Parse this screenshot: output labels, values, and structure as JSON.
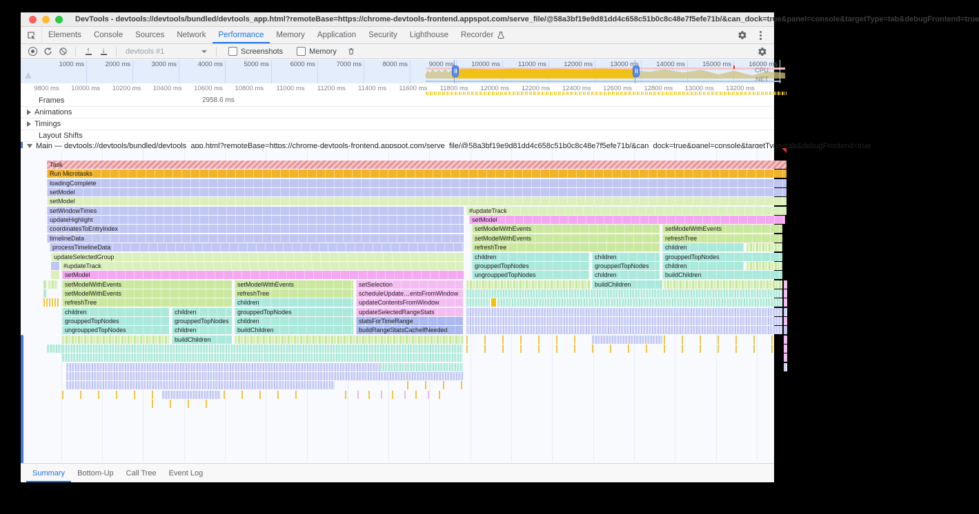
{
  "window": {
    "title": "DevTools - devtools://devtools/bundled/devtools_app.html?remoteBase=https://chrome-devtools-frontend.appspot.com/serve_file/@58a3bf19e9d81dd4c658c51b0c8c48e7f5efe71b/&can_dock=true&panel=console&targetType=tab&debugFrontend=true"
  },
  "tab_bar": {
    "tabs": [
      {
        "label": "Elements",
        "active": false
      },
      {
        "label": "Console",
        "active": false
      },
      {
        "label": "Sources",
        "active": false
      },
      {
        "label": "Network",
        "active": false
      },
      {
        "label": "Performance",
        "active": true
      },
      {
        "label": "Memory",
        "active": false
      },
      {
        "label": "Application",
        "active": false
      },
      {
        "label": "Security",
        "active": false
      },
      {
        "label": "Lighthouse",
        "active": false
      },
      {
        "label": "Recorder",
        "active": false,
        "icon": "flask-icon"
      }
    ]
  },
  "toolbar": {
    "history_label": "devtools #1",
    "screenshots_label": "Screenshots",
    "memory_label": "Memory",
    "screenshots_checked": false,
    "memory_checked": false
  },
  "overview": {
    "tick_labels": [
      "1000 ms",
      "2000 ms",
      "3000 ms",
      "4000 ms",
      "5000 ms",
      "6000 ms",
      "7000 ms",
      "8000 ms",
      "9000 ms",
      "10000 ms",
      "11000 ms",
      "12000 ms",
      "13000 ms",
      "14000 ms",
      "15000 ms",
      "16000 ms"
    ],
    "cpu_label": "CPU",
    "net_label": "NET"
  },
  "ruler": {
    "tick_labels": [
      "9800 ms",
      "10000 ms",
      "10200 ms",
      "10400 ms",
      "10600 ms",
      "10800 ms",
      "11000 ms",
      "11200 ms",
      "11400 ms",
      "11600 ms",
      "11800 ms",
      "12000 ms",
      "12200 ms",
      "12400 ms",
      "12600 ms",
      "12800 ms",
      "13000 ms",
      "13200 ms"
    ]
  },
  "tracks": {
    "frames": {
      "label": "Frames",
      "frame_duration": "2958.6 ms"
    },
    "animations": {
      "label": "Animations"
    },
    "timings": {
      "label": "Timings"
    },
    "layout_shifts": {
      "label": "Layout Shifts"
    },
    "main": {
      "label": "Main — devtools://devtools/bundled/devtools_app.html?remoteBase=https://chrome-devtools-frontend.appspot.com/serve_file/@58a3bf19e9d81dd4c658c51b0c8c48e7f5efe71b/&can_dock=true&panel=console&targetType=tab&debugFrontend=true"
    }
  },
  "flame": {
    "rows": [
      {
        "bars": [
          [
            38,
            1072,
            "task",
            "Task"
          ]
        ]
      },
      {
        "bars": [
          [
            38,
            1072,
            "script",
            "Run Microtasks"
          ]
        ]
      },
      {
        "bars": [
          [
            38,
            1072,
            "lav",
            "loadingComplete"
          ]
        ]
      },
      {
        "bars": [
          [
            38,
            1072,
            "lav",
            "setModel"
          ]
        ]
      },
      {
        "bars": [
          [
            38,
            1072,
            "grn1",
            "setModel"
          ]
        ]
      },
      {
        "bars": [
          [
            38,
            604,
            "lav",
            "setWindowTimes"
          ],
          [
            646,
            464,
            "grn1",
            "#updateTrack"
          ]
        ]
      },
      {
        "bars": [
          [
            38,
            604,
            "lav",
            "updateHighlight"
          ],
          [
            650,
            458,
            "pink",
            "setModel"
          ]
        ]
      },
      {
        "bars": [
          [
            38,
            604,
            "lav",
            "coordinatesToEntryIndex"
          ],
          [
            654,
            272,
            "grn2",
            "setModelWithEvents"
          ],
          [
            930,
            174,
            "grn2",
            "setModelWithEvents"
          ]
        ]
      },
      {
        "bars": [
          [
            38,
            604,
            "lav",
            "timelineData"
          ],
          [
            654,
            272,
            "grn2",
            "setModelWithEvents"
          ],
          [
            930,
            174,
            "grn2",
            "refreshTree"
          ]
        ]
      },
      {
        "bars": [
          [
            42,
            600,
            "lav",
            "processTimelineData"
          ],
          [
            654,
            272,
            "grn2",
            "refreshTree"
          ],
          [
            930,
            118,
            "teal",
            "children"
          ],
          [
            1052,
            52,
            "cgrn",
            ""
          ]
        ]
      },
      {
        "bars": [
          [
            44,
            598,
            "grn1",
            "updateSelectedGroup"
          ],
          [
            654,
            170,
            "teal",
            "children"
          ],
          [
            828,
            98,
            "teal",
            "children"
          ],
          [
            930,
            174,
            "teal",
            "grouppedTopNodes"
          ]
        ]
      },
      {
        "bars": [
          [
            44,
            12,
            "lav",
            ""
          ],
          [
            58,
            584,
            "grn1",
            "#updateTrack"
          ],
          [
            654,
            170,
            "teal",
            "grouppedTopNodes"
          ],
          [
            828,
            98,
            "teal",
            "grouppedTopNodes"
          ],
          [
            930,
            118,
            "teal",
            "children"
          ],
          [
            1052,
            52,
            "cgrn",
            ""
          ]
        ]
      },
      {
        "bars": [
          [
            44,
            12,
            "grn1",
            ""
          ],
          [
            60,
            582,
            "pink",
            "setModel"
          ],
          [
            654,
            170,
            "teal",
            "ungrouppedTopNodes"
          ],
          [
            828,
            98,
            "teal",
            "children"
          ],
          [
            930,
            174,
            "teal",
            "buildChildren"
          ]
        ]
      },
      {
        "bars": [
          [
            33,
            4,
            "grn2",
            ""
          ],
          [
            40,
            14,
            "cgrn",
            ""
          ],
          [
            60,
            246,
            "grn2",
            "setModelWithEvents"
          ],
          [
            310,
            172,
            "grn2",
            "setModelWithEvents"
          ],
          [
            486,
            155,
            "pinkL",
            "setSelection"
          ],
          [
            646,
            180,
            "cgrn",
            ""
          ],
          [
            828,
            102,
            "teal",
            "buildChildren"
          ],
          [
            932,
            172,
            "cgrn",
            ""
          ],
          [
            1106,
            5,
            "pinkL",
            ""
          ]
        ]
      },
      {
        "bars": [
          [
            33,
            4,
            "teal",
            ""
          ],
          [
            60,
            246,
            "grn2",
            "setModelWithEvents"
          ],
          [
            310,
            172,
            "grn2",
            "refreshTree"
          ],
          [
            486,
            155,
            "pinkL",
            "scheduleUpdate…entsFromWindow"
          ],
          [
            646,
            458,
            "cteal",
            ""
          ],
          [
            1106,
            5,
            "pinkL",
            ""
          ]
        ]
      },
      {
        "bars": [
          [
            33,
            24,
            "ty",
            ""
          ],
          [
            60,
            246,
            "grn2",
            "refreshTree"
          ],
          [
            310,
            172,
            "teal",
            "children"
          ],
          [
            486,
            155,
            "pinkL",
            "updateContentsFromWindow"
          ],
          [
            646,
            34,
            "cteal",
            ""
          ],
          [
            682,
            7,
            "yblk",
            ""
          ],
          [
            691,
            413,
            "cteal",
            ""
          ],
          [
            1106,
            5,
            "pinkL",
            ""
          ]
        ]
      },
      {
        "bars": [
          [
            60,
            155,
            "teal",
            "children"
          ],
          [
            219,
            87,
            "teal",
            "children"
          ],
          [
            310,
            172,
            "teal",
            "grouppedTopNodes"
          ],
          [
            486,
            155,
            "pinkL",
            "updateSelectedRangeStats"
          ],
          [
            646,
            458,
            "clav",
            ""
          ],
          [
            1106,
            5,
            "clav",
            ""
          ]
        ]
      },
      {
        "bars": [
          [
            60,
            155,
            "teal",
            "grouppedTopNodes"
          ],
          [
            219,
            87,
            "teal",
            "grouppedTopNodes"
          ],
          [
            310,
            172,
            "teal",
            "children"
          ],
          [
            486,
            155,
            "blue",
            "statsForTimeRange"
          ],
          [
            646,
            458,
            "clav",
            ""
          ],
          [
            1106,
            5,
            "pinkL",
            ""
          ]
        ]
      },
      {
        "bars": [
          [
            60,
            155,
            "teal",
            "ungrouppedTopNodes"
          ],
          [
            219,
            87,
            "teal",
            "children"
          ],
          [
            310,
            172,
            "teal",
            "buildChildren"
          ],
          [
            486,
            155,
            "blue",
            "buildRangeStatsCacheIfNeeded"
          ],
          [
            646,
            458,
            "clav",
            ""
          ],
          [
            1106,
            5,
            "lav",
            ""
          ]
        ]
      },
      {
        "bars": [
          [
            60,
            155,
            "cgrn",
            ""
          ],
          [
            219,
            87,
            "teal",
            "buildChildren"
          ],
          [
            310,
            331,
            "cgrn",
            ""
          ],
          [
            646,
            180,
            "tys",
            ""
          ],
          [
            828,
            102,
            "clav",
            ""
          ],
          [
            932,
            172,
            "tys",
            ""
          ],
          [
            1106,
            5,
            "pinkL",
            ""
          ]
        ]
      },
      {
        "bars": [
          [
            38,
            22,
            "cteal",
            ""
          ],
          [
            60,
            581,
            "cteal",
            ""
          ],
          [
            646,
            458,
            "tys",
            ""
          ],
          [
            1106,
            5,
            "pinkL",
            ""
          ]
        ]
      },
      {
        "bars": [
          [
            60,
            581,
            "cteal",
            ""
          ],
          [
            1106,
            5,
            "pinkL",
            ""
          ]
        ]
      },
      {
        "bars": [
          [
            66,
            454,
            "clav",
            ""
          ],
          [
            520,
            121,
            "cteal",
            ""
          ],
          [
            1106,
            5,
            "clav",
            ""
          ]
        ]
      },
      {
        "bars": [
          [
            66,
            575,
            "clav",
            ""
          ]
        ]
      },
      {
        "bars": [
          [
            66,
            389,
            "clav",
            ""
          ],
          [
            560,
            81,
            "tys",
            ""
          ]
        ]
      },
      {
        "bars": [
          [
            60,
            340,
            "tys",
            ""
          ],
          [
            205,
            85,
            "clav",
            ""
          ],
          [
            470,
            150,
            "typ",
            ""
          ]
        ]
      },
      {
        "bars": [
          [
            190,
            100,
            "tys",
            ""
          ]
        ]
      }
    ]
  },
  "bottom_tabs": [
    {
      "label": "Summary",
      "active": true
    },
    {
      "label": "Bottom-Up",
      "active": false
    },
    {
      "label": "Call Tree",
      "active": false
    },
    {
      "label": "Event Log",
      "active": false
    }
  ],
  "colors": {
    "accent_blue": "#1a73e8",
    "task_red": "#e89499",
    "script_yellow": "#f0b428",
    "lavender": "#c1c7f3",
    "pale_green": "#dcf0bd",
    "green": "#cbe89f",
    "teal": "#abe9da",
    "pink": "#f3a8f1",
    "light_pink": "#f5bcf2",
    "periwinkle": "#aab9ef",
    "marker_red": "#e0302e"
  }
}
